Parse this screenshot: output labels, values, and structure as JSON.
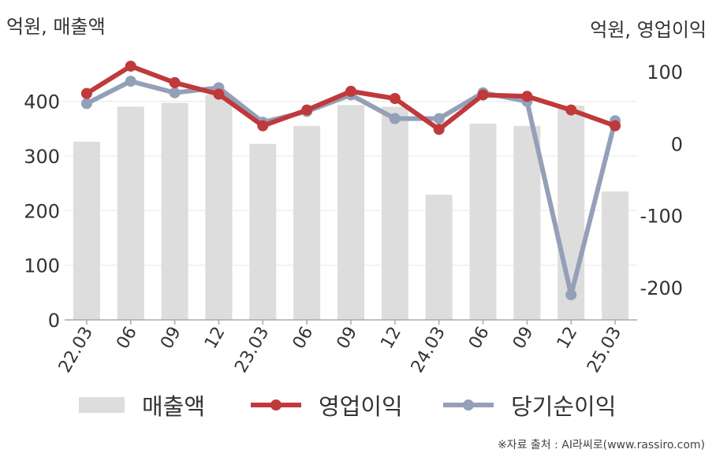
{
  "units": {
    "left": "억원, 매출액",
    "right": "억원, 영업이익"
  },
  "source": "※자료 출처 : AI라씨로(www.rassiro.com)",
  "chart_data": {
    "type": "bar+line",
    "categories": [
      "22.03",
      "06",
      "09",
      "12",
      "23.03",
      "06",
      "09",
      "12",
      "24.03",
      "06",
      "09",
      "12",
      "25.03"
    ],
    "left_axis": {
      "ylim": [
        0,
        480
      ],
      "ticks": [
        0,
        100,
        200,
        300,
        400
      ]
    },
    "right_axis": {
      "ylim": [
        -245,
        120
      ],
      "ticks": [
        -200,
        -100,
        0,
        100
      ]
    },
    "series": [
      {
        "name": "매출액",
        "type": "bar",
        "axis": "left",
        "color": "#dddddd",
        "values": [
          326,
          390,
          397,
          412,
          322,
          355,
          393,
          390,
          229,
          359,
          355,
          392,
          235
        ]
      },
      {
        "name": "영업이익",
        "type": "line",
        "axis": "right",
        "color": "#c0393b",
        "values": [
          70,
          108,
          85,
          69,
          25,
          47,
          73,
          63,
          20,
          68,
          66,
          47,
          25
        ]
      },
      {
        "name": "당기순이익",
        "type": "line",
        "axis": "right",
        "color": "#93a0b8",
        "values": [
          56,
          87,
          71,
          78,
          30,
          45,
          68,
          35,
          35,
          71,
          59,
          -210,
          32
        ]
      }
    ],
    "grid": "horizontal",
    "legend": "bottom"
  }
}
